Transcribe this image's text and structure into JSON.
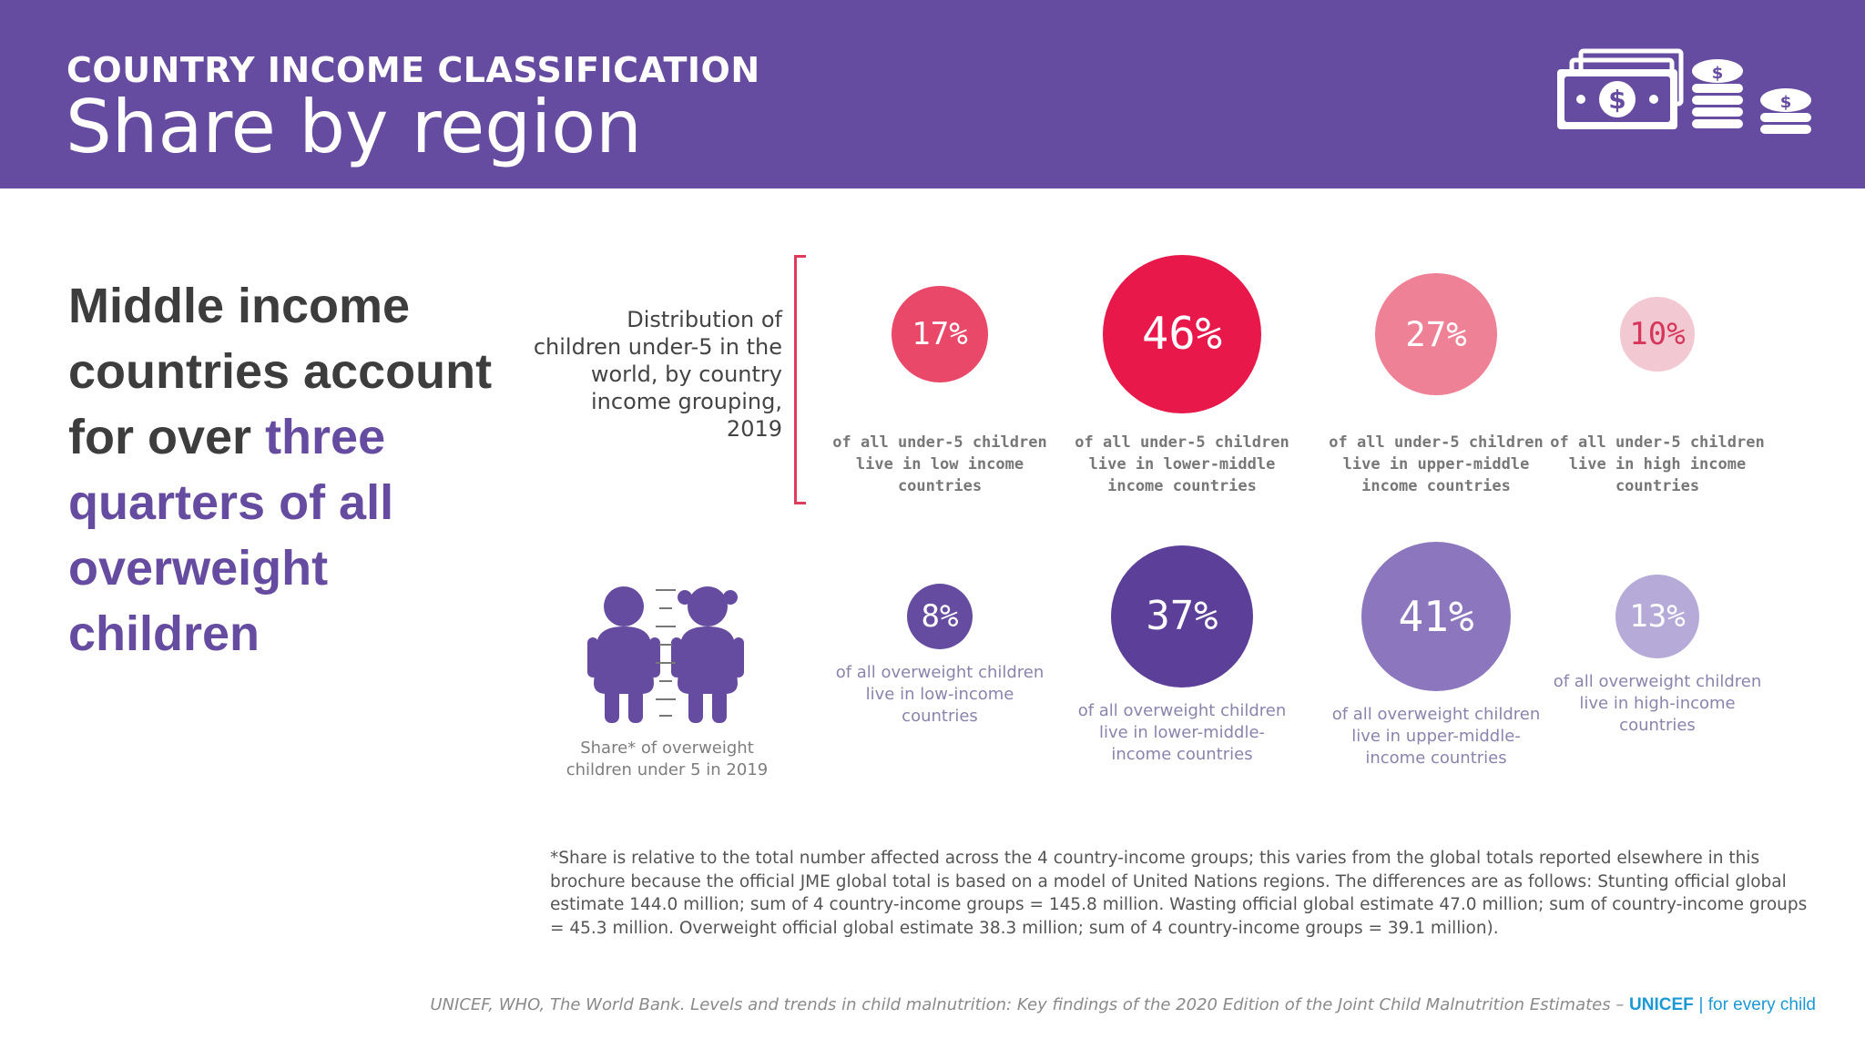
{
  "header": {
    "kicker": "COUNTRY INCOME CLASSIFICATION",
    "title": "Share by region",
    "icon": "money-and-coins-icon"
  },
  "headline": {
    "part1": "Middle income countries account for over ",
    "highlight": "three quarters of all overweight children"
  },
  "distribution_label": "Distribution of children under-5 in the world, by country income grouping, 2019",
  "overweight_label": "Share* of overweight children under 5 in 2019",
  "footnote": "*Share is relative to the total number affected across the 4 country-income groups; this varies from the global totals reported elsewhere in this brochure because the official JME global total is based on a model of United Nations regions. The differences are as follows: Stunting official global estimate 144.0 million; sum of 4 country-income groups = 145.8 million. Wasting official global estimate 47.0 million; sum of country-income groups = 45.3 million. Overweight official global estimate 38.3 million; sum of 4 country-income groups = 39.1 million).",
  "source": {
    "citation": "UNICEF, WHO, The World Bank. Levels and trends in child malnutrition: Key findings of the 2020 Edition of the Joint Child Malnutrition Estimates – ",
    "brand": "UNICEF",
    "tagline": "| for every child"
  },
  "chart_data": [
    {
      "type": "bubble",
      "title": "Distribution of children under-5 in the world, by country income grouping, 2019",
      "categories": [
        "low income",
        "lower-middle income",
        "upper-middle income",
        "high income"
      ],
      "values": [
        17,
        46,
        27,
        10
      ],
      "labels": [
        "17%",
        "46%",
        "27%",
        "10%"
      ],
      "captions": [
        "of all under-5 children live in low income countries",
        "of all under-5 children live in lower-middle income countries",
        "of all under-5 children live in upper-middle income countries",
        "of all under-5 children live in high income countries"
      ],
      "colors": [
        "#e94868",
        "#e8184a",
        "#ef8197",
        "#f2c9d2"
      ]
    },
    {
      "type": "bubble",
      "title": "Share* of overweight children under 5 in 2019",
      "categories": [
        "low-income",
        "lower-middle-income",
        "upper-middle-income",
        "high-income"
      ],
      "values": [
        8,
        37,
        41,
        13
      ],
      "labels": [
        "8%",
        "37%",
        "41%",
        "13%"
      ],
      "captions": [
        "of all overweight children live in low-income countries",
        "of all overweight children live in lower-middle-income countries",
        "of all overweight children live in upper-middle-income countries",
        "of all overweight children live in high-income countries"
      ],
      "colors": [
        "#664ca0",
        "#5c3f99",
        "#8c76be",
        "#b6aad8"
      ]
    }
  ]
}
